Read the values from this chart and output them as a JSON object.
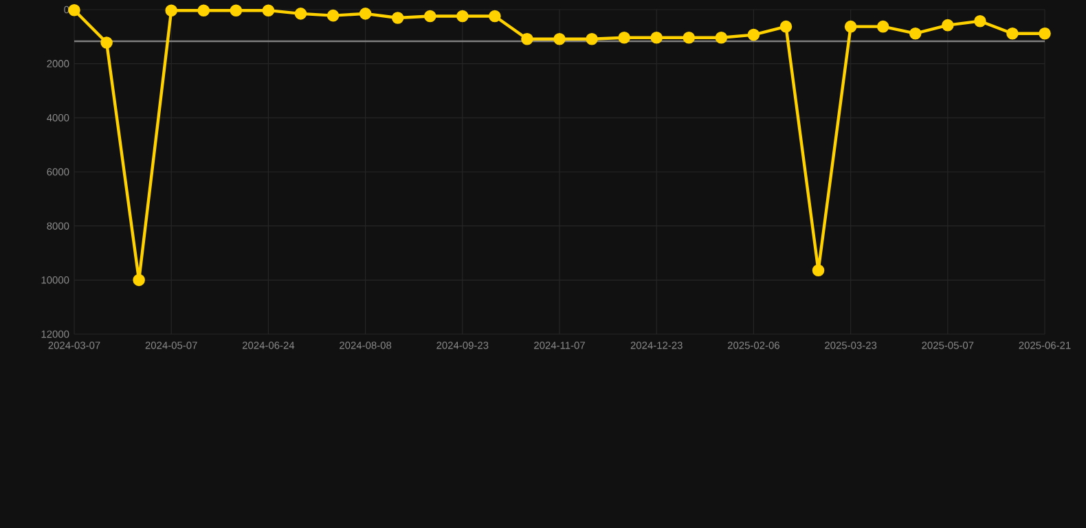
{
  "chart_data": {
    "type": "line",
    "categories": [
      "2024-03-07",
      null,
      null,
      "2024-05-07",
      null,
      null,
      "2024-06-24",
      null,
      null,
      "2024-08-08",
      null,
      null,
      "2024-09-23",
      null,
      null,
      "2024-11-07",
      null,
      null,
      "2024-12-23",
      null,
      null,
      "2025-02-06",
      null,
      null,
      "2025-03-23",
      null,
      null,
      "2025-05-07",
      null,
      null,
      "2025-06-21"
    ],
    "series": [
      {
        "color": "#ffd200",
        "values": [
          20,
          1220,
          10000,
          30,
          30,
          30,
          30,
          150,
          220,
          150,
          305,
          240,
          240,
          240,
          1085,
          1085,
          1085,
          1035,
          1035,
          1035,
          1035,
          930,
          627,
          9640,
          627,
          627,
          882,
          576,
          424,
          882,
          882
        ]
      }
    ],
    "ylim": [
      12000,
      0
    ],
    "yticks": [
      0,
      2000,
      4000,
      6000,
      8000,
      10000,
      12000
    ],
    "ref_lines": [
      {
        "axis": "y",
        "value": 1170,
        "color": "#808080"
      }
    ],
    "grid": true,
    "marker": "circle",
    "line_style": "solid"
  }
}
